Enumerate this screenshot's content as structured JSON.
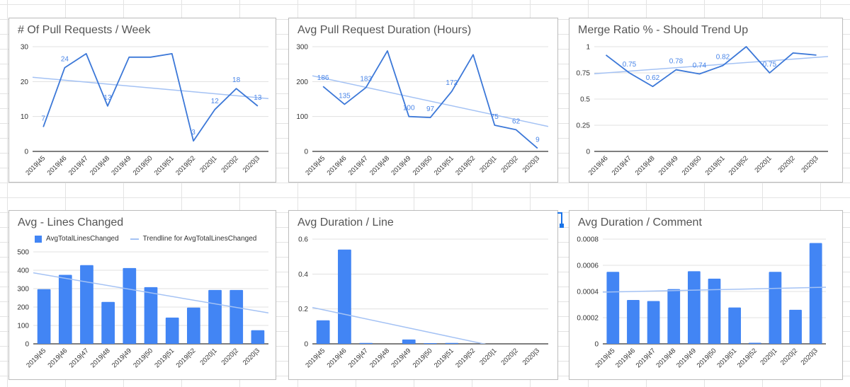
{
  "colors": {
    "line": "#3c78d8",
    "bar": "#4285f4",
    "trendline": "#a4c2f4",
    "data_label": "#4a86e8",
    "grid": "#e0e0e0",
    "axis": "#333333"
  },
  "chart_data": [
    {
      "id": "c1",
      "type": "line",
      "title": "# Of Pull Requests / Week",
      "categories": [
        "2019|45",
        "2019|46",
        "2019|47",
        "2019|48",
        "2019|49",
        "2019|50",
        "2019|51",
        "2019|52",
        "2020|1",
        "2020|2",
        "2020|3"
      ],
      "values": [
        7,
        24,
        28,
        13,
        27,
        27,
        28,
        3,
        12,
        18,
        13
      ],
      "data_labels": [
        "7",
        "24",
        null,
        "13",
        null,
        null,
        null,
        "3",
        "12",
        "18",
        "13"
      ],
      "ylim": [
        0,
        30
      ],
      "yticks": [
        0,
        10,
        20,
        30
      ],
      "ytick_labels": [
        "0",
        "10",
        "20",
        "30"
      ],
      "trendline": "linear",
      "grid": true
    },
    {
      "id": "c2",
      "type": "line",
      "title": "Avg Pull Request Duration (Hours)",
      "categories": [
        "2019|45",
        "2019|46",
        "2019|47",
        "2019|48",
        "2019|49",
        "2019|50",
        "2019|51",
        "2019|52",
        "2020|1",
        "2020|2",
        "2020|3"
      ],
      "values": [
        186,
        135,
        183,
        288,
        100,
        97,
        172,
        277,
        75,
        62,
        9
      ],
      "data_labels": [
        "186",
        "135",
        "183",
        null,
        "100",
        "97",
        "172",
        null,
        "75",
        "62",
        "9"
      ],
      "ylim": [
        0,
        300
      ],
      "yticks": [
        0,
        100,
        200,
        300
      ],
      "ytick_labels": [
        "0",
        "100",
        "200",
        "300"
      ],
      "trendline": "linear",
      "grid": true
    },
    {
      "id": "c3",
      "type": "line",
      "title": "Merge Ratio % - Should Trend Up",
      "categories": [
        "2019|46",
        "2019|47",
        "2019|48",
        "2019|49",
        "2019|50",
        "2019|51",
        "2019|52",
        "2020|1",
        "2020|2",
        "2020|3"
      ],
      "values": [
        0.92,
        0.75,
        0.62,
        0.78,
        0.74,
        0.82,
        1.0,
        0.75,
        0.94,
        0.92
      ],
      "data_labels": [
        null,
        "0.75",
        "0.62",
        "0.78",
        "0.74",
        "0.82",
        null,
        "0.75",
        null,
        null
      ],
      "ylim": [
        0,
        1
      ],
      "yticks": [
        0,
        0.25,
        0.5,
        0.75,
        1
      ],
      "ytick_labels": [
        "0",
        "0.25",
        "0.5",
        "0.75",
        "1"
      ],
      "trendline": "linear",
      "grid": true
    },
    {
      "id": "c4",
      "type": "bar",
      "title": "Avg - Lines Changed",
      "legend": {
        "series": "AvgTotalLinesChanged",
        "trendline": "Trendline for AvgTotalLinesChanged",
        "position": "top"
      },
      "categories": [
        "2019|45",
        "2019|46",
        "2019|47",
        "2019|48",
        "2019|49",
        "2019|50",
        "2019|51",
        "2019|52",
        "2020|1",
        "2020|2",
        "2020|3"
      ],
      "values": [
        297,
        375,
        428,
        228,
        412,
        308,
        143,
        197,
        293,
        293,
        74
      ],
      "ylim": [
        0,
        500
      ],
      "yticks": [
        0,
        100,
        200,
        300,
        400,
        500
      ],
      "ytick_labels": [
        "0",
        "100",
        "200",
        "300",
        "400",
        "500"
      ],
      "trendline": "linear",
      "grid": true
    },
    {
      "id": "c5",
      "type": "bar",
      "title": "Avg Duration / Line",
      "categories": [
        "2019|45",
        "2019|46",
        "2019|47",
        "2019|48",
        "2019|49",
        "2019|50",
        "2019|51",
        "2019|52",
        "2020|1",
        "2020|2",
        "2020|3"
      ],
      "values": [
        0.135,
        0.54,
        0.005,
        0,
        0.025,
        0.003,
        0.005,
        0,
        0,
        0,
        0
      ],
      "ylim": [
        0,
        0.6
      ],
      "yticks": [
        0,
        0.2,
        0.4,
        0.6
      ],
      "ytick_labels": [
        "0",
        "0.2",
        "0.4",
        "0.6"
      ],
      "trendline": "linear",
      "grid": true
    },
    {
      "id": "c6",
      "type": "bar",
      "title": "Avg Duration / Comment",
      "categories": [
        "2019|45",
        "2019|46",
        "2019|47",
        "2019|48",
        "2019|49",
        "2019|50",
        "2019|51",
        "2019|52",
        "2020|1",
        "2020|2",
        "2020|3"
      ],
      "values": [
        0.00055,
        0.000335,
        0.000327,
        0.000418,
        0.000555,
        0.000498,
        0.000278,
        8e-06,
        0.00055,
        0.00026,
        0.00077
      ],
      "ylim": [
        0,
        0.0008
      ],
      "yticks": [
        0,
        0.0002,
        0.0004,
        0.0006,
        0.0008
      ],
      "ytick_labels": [
        "0",
        "0.0002",
        "0.0004",
        "0.0006",
        "0.0008"
      ],
      "trendline": "linear",
      "grid": true
    }
  ]
}
